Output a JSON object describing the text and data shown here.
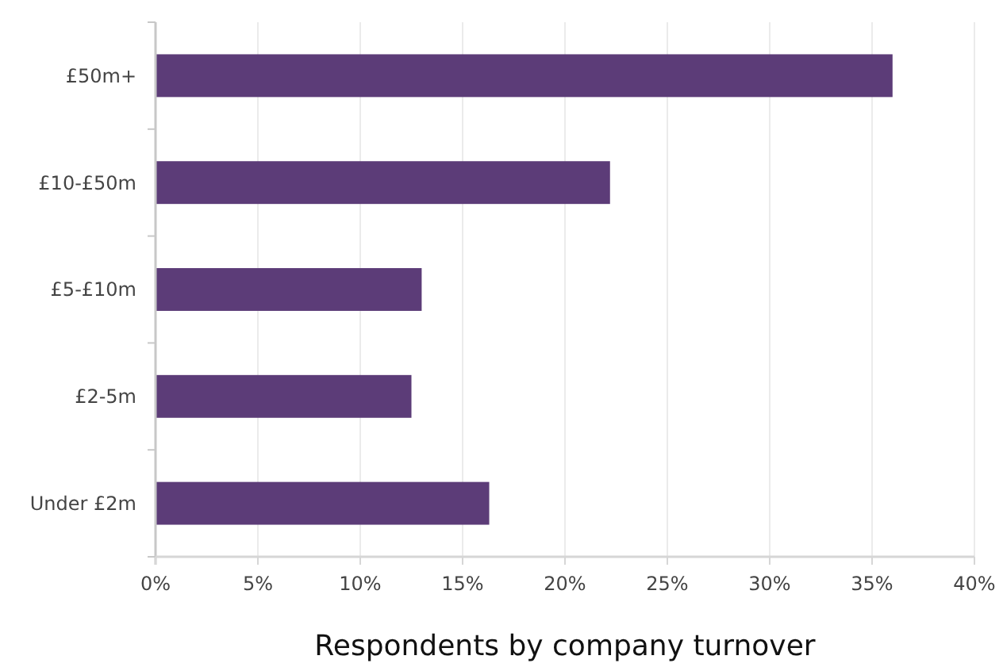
{
  "chart_data": {
    "type": "bar",
    "orientation": "horizontal",
    "title": "Respondents by company turnover",
    "categories": [
      "£50m+",
      "£10-£50m",
      "£5-£10m",
      "£2-5m",
      "Under £2m"
    ],
    "values": [
      36.0,
      22.2,
      13.0,
      12.5,
      16.3
    ],
    "color": "#5c3c78",
    "xlim": [
      0,
      40
    ],
    "xticks": [
      {
        "value": 0,
        "label": "0%"
      },
      {
        "value": 5,
        "label": "5%"
      },
      {
        "value": 10,
        "label": "10%"
      },
      {
        "value": 15,
        "label": "15%"
      },
      {
        "value": 20,
        "label": "20%"
      },
      {
        "value": 25,
        "label": "25%"
      },
      {
        "value": 30,
        "label": "30%"
      },
      {
        "value": 35,
        "label": "35%"
      },
      {
        "value": 40,
        "label": "40%"
      }
    ],
    "grid": "x"
  }
}
